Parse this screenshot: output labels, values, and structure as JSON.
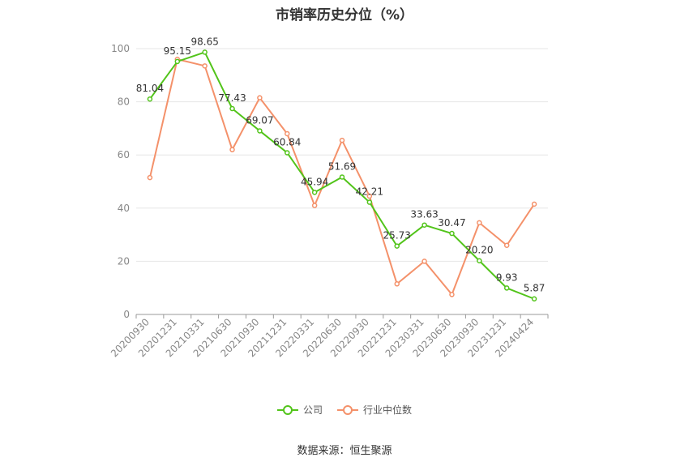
{
  "chart_data": {
    "type": "line",
    "title": "市销率历史分位（%）",
    "categories": [
      "20200930",
      "20201231",
      "20210331",
      "20210630",
      "20210930",
      "20211231",
      "20220331",
      "20220630",
      "20220930",
      "20221231",
      "20230331",
      "20230630",
      "20230930",
      "20231231",
      "20240424"
    ],
    "series": [
      {
        "name": "公司",
        "color": "#52c41a",
        "values": [
          81.04,
          95.15,
          98.65,
          77.43,
          69.07,
          60.84,
          45.94,
          51.69,
          42.21,
          25.73,
          33.63,
          30.47,
          20.2,
          9.93,
          5.87
        ],
        "labels": [
          "81.04",
          "95.15",
          "98.65",
          "77.43",
          "69.07",
          "60.84",
          "45.94",
          "51.69",
          "42.21",
          "25.73",
          "33.63",
          "30.47",
          "20.20",
          "9.93",
          "5.87"
        ]
      },
      {
        "name": "行业中位数",
        "color": "#f4916a",
        "values": [
          51.5,
          96,
          93.5,
          62,
          81.5,
          68,
          41,
          65.5,
          44.5,
          11.5,
          20,
          7.5,
          34.5,
          26,
          41.5
        ]
      }
    ],
    "ylim": [
      0,
      100
    ],
    "yticks": [
      0,
      20,
      40,
      60,
      80,
      100
    ],
    "grid": true,
    "legend_position": "bottom"
  },
  "source": "数据来源：恒生聚源"
}
